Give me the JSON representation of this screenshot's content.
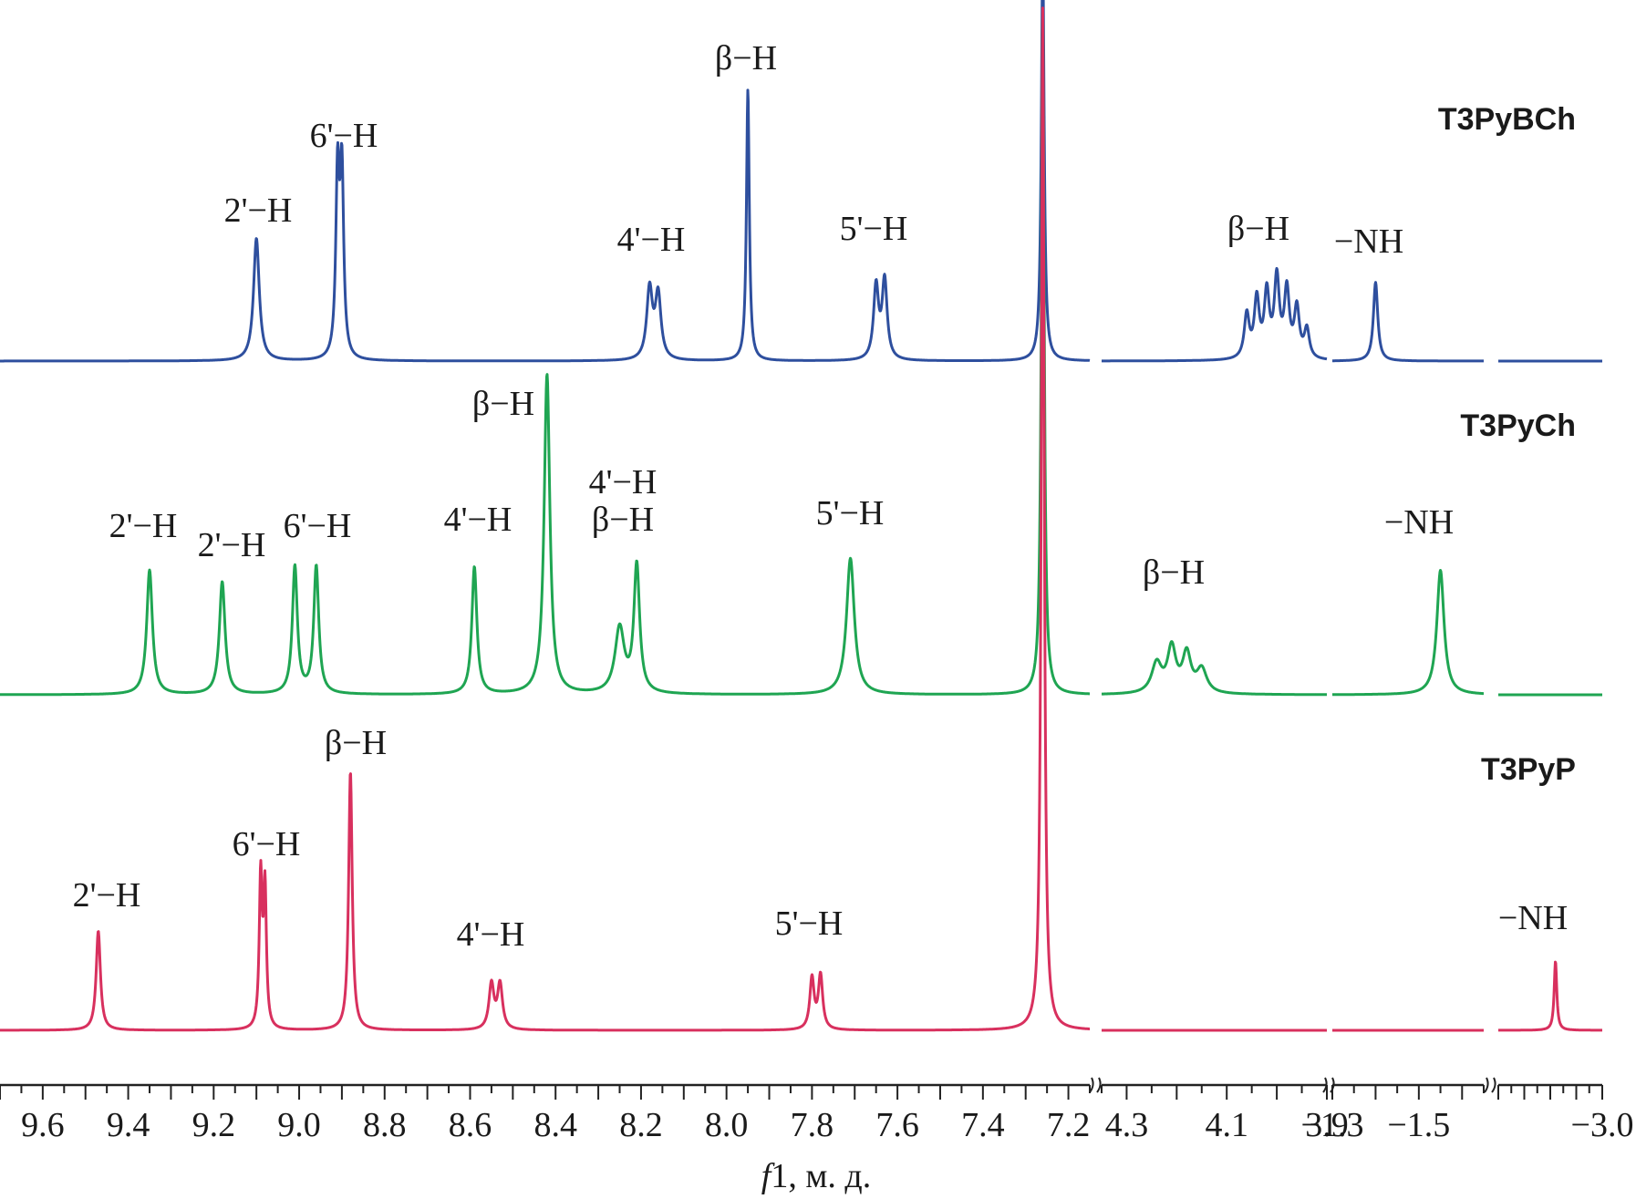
{
  "chart_data": {
    "type": "line",
    "xlabel": "f1, м. д.",
    "xlabel_italic_prefix": "f",
    "xlabel_rest": "1, м. д.",
    "axis_segments": [
      {
        "from": 9.7,
        "to": 7.15,
        "ticks": [
          9.6,
          9.4,
          9.2,
          9.0,
          8.8,
          8.6,
          8.4,
          8.2,
          8.0,
          7.8,
          7.6,
          7.4,
          7.2
        ],
        "tick_labels": [
          "9.6",
          "9.4",
          "9.2",
          "9.0",
          "8.8",
          "8.6",
          "8.4",
          "8.2",
          "8.0",
          "7.8",
          "7.6",
          "7.4",
          "7.2"
        ]
      },
      {
        "from": 4.35,
        "to": 3.9,
        "ticks": [
          4.3,
          4.1,
          3.9
        ],
        "tick_labels": [
          "4.3",
          "4.1",
          "3.9"
        ]
      },
      {
        "from": -1.3,
        "to": -1.65,
        "ticks": [
          -1.3,
          -1.5
        ],
        "tick_labels": [
          "−1.3",
          "−1.5"
        ]
      },
      {
        "from": -2.6,
        "to": -3.0,
        "ticks": [
          -3.0
        ],
        "tick_labels": [
          "−3.0"
        ]
      }
    ],
    "solvent_peak_ppm": 7.26,
    "series": [
      {
        "name": "T3PyBCh",
        "color": "#2e4f9e",
        "peaks": [
          {
            "ppm": 9.1,
            "height": 0.42,
            "width": 0.008
          },
          {
            "ppm": 8.91,
            "height": 0.62,
            "width": 0.005
          },
          {
            "ppm": 8.9,
            "height": 0.62,
            "width": 0.005
          },
          {
            "ppm": 8.18,
            "height": 0.24,
            "width": 0.008
          },
          {
            "ppm": 8.16,
            "height": 0.22,
            "width": 0.008
          },
          {
            "ppm": 7.95,
            "height": 0.93,
            "width": 0.004
          },
          {
            "ppm": 7.65,
            "height": 0.25,
            "width": 0.007
          },
          {
            "ppm": 7.63,
            "height": 0.27,
            "width": 0.007
          },
          {
            "ppm": 4.06,
            "height": 0.15,
            "width": 0.006
          },
          {
            "ppm": 4.04,
            "height": 0.2,
            "width": 0.006
          },
          {
            "ppm": 4.02,
            "height": 0.22,
            "width": 0.006
          },
          {
            "ppm": 4.0,
            "height": 0.27,
            "width": 0.006
          },
          {
            "ppm": 3.98,
            "height": 0.23,
            "width": 0.006
          },
          {
            "ppm": 3.96,
            "height": 0.17,
            "width": 0.006
          },
          {
            "ppm": 3.94,
            "height": 0.1,
            "width": 0.006
          },
          {
            "ppm": -1.4,
            "height": 0.27,
            "width": 0.006
          }
        ],
        "labels": [
          {
            "text": "2'−H",
            "ppm": 9.1
          },
          {
            "text": "6'−H",
            "ppm": 8.91
          },
          {
            "text": "4'−H",
            "ppm": 8.17
          },
          {
            "text": "β−H",
            "ppm": 7.95
          },
          {
            "text": "5'−H",
            "ppm": 7.64
          },
          {
            "text": "β−H",
            "ppm": 4.0
          },
          {
            "text": "−NH",
            "ppm": -1.4
          }
        ]
      },
      {
        "name": "T3PyCh",
        "color": "#1fa552",
        "peaks": [
          {
            "ppm": 9.35,
            "height": 0.42,
            "width": 0.008
          },
          {
            "ppm": 9.18,
            "height": 0.38,
            "width": 0.008
          },
          {
            "ppm": 9.01,
            "height": 0.43,
            "width": 0.007
          },
          {
            "ppm": 8.96,
            "height": 0.43,
            "width": 0.007
          },
          {
            "ppm": 8.59,
            "height": 0.43,
            "width": 0.007
          },
          {
            "ppm": 8.42,
            "height": 1.08,
            "width": 0.008
          },
          {
            "ppm": 8.25,
            "height": 0.22,
            "width": 0.013
          },
          {
            "ppm": 8.21,
            "height": 0.43,
            "width": 0.008
          },
          {
            "ppm": 7.71,
            "height": 0.46,
            "width": 0.011
          },
          {
            "ppm": 4.24,
            "height": 0.1,
            "width": 0.012
          },
          {
            "ppm": 4.21,
            "height": 0.15,
            "width": 0.01
          },
          {
            "ppm": 4.18,
            "height": 0.13,
            "width": 0.01
          },
          {
            "ppm": 4.15,
            "height": 0.08,
            "width": 0.012
          },
          {
            "ppm": -1.55,
            "height": 0.42,
            "width": 0.01
          }
        ],
        "labels": [
          {
            "text": "2'−H",
            "ppm": 9.35
          },
          {
            "text": "2'−H",
            "ppm": 9.18
          },
          {
            "text": "6'−H",
            "ppm": 8.98
          },
          {
            "text": "4'−H",
            "ppm": 8.59
          },
          {
            "text": "β−H",
            "ppm": 8.42
          },
          {
            "text": "4'−H",
            "ppm": 8.23
          },
          {
            "text": "β−H",
            "ppm": 8.23
          },
          {
            "text": "5'−H",
            "ppm": 7.71
          },
          {
            "text": "β−H",
            "ppm": 4.18
          },
          {
            "text": "−NH",
            "ppm": -1.55
          }
        ]
      },
      {
        "name": "T3PyP",
        "color": "#d8305e",
        "peaks": [
          {
            "ppm": 9.47,
            "height": 0.33,
            "width": 0.006
          },
          {
            "ppm": 9.09,
            "height": 0.5,
            "width": 0.004
          },
          {
            "ppm": 9.08,
            "height": 0.46,
            "width": 0.004
          },
          {
            "ppm": 8.88,
            "height": 0.86,
            "width": 0.005
          },
          {
            "ppm": 8.55,
            "height": 0.15,
            "width": 0.007
          },
          {
            "ppm": 8.53,
            "height": 0.15,
            "width": 0.007
          },
          {
            "ppm": 7.8,
            "height": 0.17,
            "width": 0.006
          },
          {
            "ppm": 7.78,
            "height": 0.18,
            "width": 0.006
          },
          {
            "ppm": -2.82,
            "height": 0.23,
            "width": 0.006
          }
        ],
        "labels": [
          {
            "text": "2'−H",
            "ppm": 9.47
          },
          {
            "text": "6'−H",
            "ppm": 9.09
          },
          {
            "text": "β−H",
            "ppm": 8.88
          },
          {
            "text": "4'−H",
            "ppm": 8.54
          },
          {
            "text": "5'−H",
            "ppm": 7.79
          },
          {
            "text": "−NH",
            "ppm": -2.82
          }
        ]
      }
    ]
  }
}
